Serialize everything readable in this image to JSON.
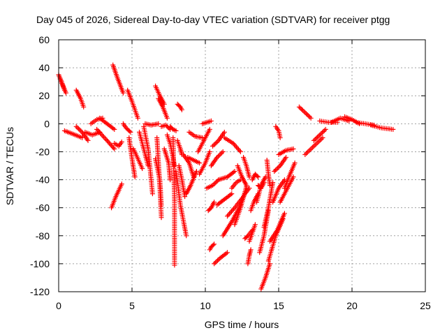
{
  "chart_data": {
    "type": "scatter",
    "title": "Day 045 of 2026, Sidereal Day-to-day VTEC variation (SDTVAR) for receiver ptgg",
    "xlabel": "GPS time / hours",
    "ylabel": "SDTVAR / TECUs",
    "xlim": [
      0,
      25
    ],
    "ylim": [
      -120,
      60
    ],
    "xticks": [
      0,
      5,
      10,
      15,
      20,
      25
    ],
    "yticks": [
      -120,
      -100,
      -80,
      -60,
      -40,
      -20,
      0,
      20,
      40,
      60
    ],
    "xtick_labels": [
      "0",
      "5",
      "10",
      "15",
      "20",
      "25"
    ],
    "ytick_labels": [
      "-120",
      "-100",
      "-80",
      "-60",
      "-40",
      "-20",
      "0",
      "20",
      "40",
      "60"
    ],
    "grid": true,
    "marker": "+",
    "color": "#ff0000",
    "arcs": [
      [
        [
          0.0,
          35
        ],
        [
          0.2,
          30
        ],
        [
          0.4,
          24
        ]
      ],
      [
        [
          0.1,
          32
        ],
        [
          0.3,
          27
        ],
        [
          0.5,
          22
        ]
      ],
      [
        [
          0.4,
          -5
        ],
        [
          0.9,
          -7
        ],
        [
          1.6,
          -10
        ]
      ],
      [
        [
          1.2,
          24
        ],
        [
          1.5,
          18
        ],
        [
          1.7,
          12
        ]
      ],
      [
        [
          1.2,
          -2
        ],
        [
          1.6,
          -6
        ],
        [
          2.0,
          -12
        ]
      ],
      [
        [
          1.8,
          -6
        ],
        [
          2.3,
          -8
        ],
        [
          2.8,
          -6
        ]
      ],
      [
        [
          2.2,
          0
        ],
        [
          2.6,
          3
        ],
        [
          3.0,
          4
        ]
      ],
      [
        [
          2.8,
          4
        ],
        [
          3.3,
          0
        ],
        [
          3.8,
          -4
        ]
      ],
      [
        [
          2.6,
          -4
        ],
        [
          3.3,
          -12
        ],
        [
          3.8,
          -18
        ]
      ],
      [
        [
          3.7,
          42
        ],
        [
          4.0,
          33
        ],
        [
          4.4,
          22
        ]
      ],
      [
        [
          3.6,
          -60
        ],
        [
          3.9,
          -52
        ],
        [
          4.3,
          -43
        ]
      ],
      [
        [
          3.8,
          -14
        ],
        [
          4.1,
          -16
        ],
        [
          4.3,
          -13
        ]
      ],
      [
        [
          4.4,
          0
        ],
        [
          4.6,
          -3
        ],
        [
          4.9,
          -6
        ]
      ],
      [
        [
          4.7,
          24
        ],
        [
          5.0,
          16
        ],
        [
          5.4,
          4
        ]
      ],
      [
        [
          4.8,
          -10
        ],
        [
          5.0,
          -25
        ],
        [
          5.2,
          -38
        ]
      ],
      [
        [
          5.1,
          -18
        ],
        [
          5.4,
          -25
        ],
        [
          5.7,
          -32
        ]
      ],
      [
        [
          5.5,
          -6
        ],
        [
          5.8,
          -18
        ],
        [
          6.1,
          -30
        ]
      ],
      [
        [
          5.8,
          -2
        ],
        [
          6.1,
          -18
        ],
        [
          6.4,
          -50
        ]
      ],
      [
        [
          5.9,
          0
        ],
        [
          6.3,
          -1
        ],
        [
          6.8,
          0
        ]
      ],
      [
        [
          6.6,
          27
        ],
        [
          6.9,
          20
        ],
        [
          7.2,
          14
        ]
      ],
      [
        [
          6.8,
          18
        ],
        [
          7.1,
          12
        ],
        [
          7.4,
          4
        ]
      ],
      [
        [
          6.6,
          -25
        ],
        [
          6.9,
          -40
        ],
        [
          7.0,
          -58
        ]
      ],
      [
        [
          6.7,
          -10
        ],
        [
          6.9,
          -45
        ],
        [
          7.0,
          -67
        ]
      ],
      [
        [
          7.0,
          -2
        ],
        [
          7.3,
          -1
        ],
        [
          7.6,
          -4
        ]
      ],
      [
        [
          7.2,
          -18
        ],
        [
          7.5,
          -28
        ],
        [
          7.6,
          -40
        ]
      ],
      [
        [
          7.4,
          -8
        ],
        [
          7.6,
          -14
        ],
        [
          7.9,
          -30
        ]
      ],
      [
        [
          7.6,
          -2
        ],
        [
          7.8,
          -4
        ],
        [
          8.0,
          -5
        ]
      ],
      [
        [
          7.8,
          -10
        ],
        [
          7.9,
          -55
        ],
        [
          7.9,
          -101
        ]
      ],
      [
        [
          8.1,
          14
        ],
        [
          8.3,
          12
        ],
        [
          8.4,
          10
        ]
      ],
      [
        [
          8.0,
          -34
        ],
        [
          8.3,
          -58
        ],
        [
          8.7,
          -80
        ]
      ],
      [
        [
          8.1,
          -12
        ],
        [
          8.3,
          -18
        ],
        [
          8.4,
          -22
        ]
      ],
      [
        [
          8.2,
          -30
        ],
        [
          8.4,
          -40
        ],
        [
          8.6,
          -52
        ]
      ],
      [
        [
          8.5,
          -22
        ],
        [
          8.9,
          -28
        ],
        [
          9.2,
          -38
        ]
      ],
      [
        [
          8.7,
          -50
        ],
        [
          9.0,
          -44
        ],
        [
          9.4,
          -34
        ]
      ],
      [
        [
          8.8,
          -24
        ],
        [
          9.2,
          -26
        ],
        [
          9.6,
          -28
        ]
      ],
      [
        [
          8.9,
          -6
        ],
        [
          9.3,
          -9
        ],
        [
          9.8,
          -10
        ]
      ],
      [
        [
          9.5,
          -20
        ],
        [
          9.9,
          -12
        ],
        [
          10.3,
          -4
        ]
      ],
      [
        [
          9.6,
          -36
        ],
        [
          10.0,
          -28
        ],
        [
          10.3,
          -20
        ]
      ],
      [
        [
          9.8,
          0
        ],
        [
          10.1,
          1
        ],
        [
          10.4,
          2
        ]
      ],
      [
        [
          10.1,
          -46
        ],
        [
          10.5,
          -44
        ],
        [
          10.9,
          -40
        ]
      ],
      [
        [
          10.2,
          -62
        ],
        [
          10.4,
          -60
        ],
        [
          10.6,
          -56
        ]
      ],
      [
        [
          10.3,
          -90
        ],
        [
          10.4,
          -88
        ],
        [
          10.6,
          -86
        ]
      ],
      [
        [
          10.4,
          -30
        ],
        [
          10.8,
          -24
        ],
        [
          11.2,
          -20
        ]
      ],
      [
        [
          10.5,
          -16
        ],
        [
          10.9,
          -12
        ],
        [
          11.3,
          -6
        ]
      ],
      [
        [
          10.6,
          -100
        ],
        [
          11.0,
          -96
        ],
        [
          11.5,
          -92
        ]
      ],
      [
        [
          10.8,
          -58
        ],
        [
          11.3,
          -54
        ],
        [
          11.8,
          -50
        ]
      ],
      [
        [
          10.9,
          -40
        ],
        [
          11.5,
          -38
        ],
        [
          12.0,
          -34
        ]
      ],
      [
        [
          11.2,
          -80
        ],
        [
          11.8,
          -70
        ],
        [
          12.4,
          -58
        ]
      ],
      [
        [
          11.3,
          -10
        ],
        [
          11.9,
          -14
        ],
        [
          12.4,
          -20
        ]
      ],
      [
        [
          11.5,
          -66
        ],
        [
          12.0,
          -60
        ],
        [
          12.6,
          -52
        ]
      ],
      [
        [
          11.8,
          -46
        ],
        [
          12.1,
          -42
        ],
        [
          12.4,
          -40
        ]
      ],
      [
        [
          12.0,
          -72
        ],
        [
          12.4,
          -60
        ],
        [
          12.8,
          -45
        ]
      ],
      [
        [
          12.2,
          -30
        ],
        [
          12.5,
          -38
        ],
        [
          12.8,
          -44
        ]
      ],
      [
        [
          12.4,
          -56
        ],
        [
          12.7,
          -50
        ],
        [
          13.0,
          -46
        ]
      ],
      [
        [
          12.6,
          -24
        ],
        [
          12.8,
          -30
        ],
        [
          13.0,
          -38
        ]
      ],
      [
        [
          12.7,
          -82
        ],
        [
          12.9,
          -80
        ],
        [
          13.2,
          -76
        ]
      ],
      [
        [
          12.9,
          -100
        ],
        [
          13.0,
          -94
        ],
        [
          13.1,
          -90
        ]
      ],
      [
        [
          13.0,
          -84
        ],
        [
          13.2,
          -78
        ],
        [
          13.4,
          -72
        ]
      ],
      [
        [
          13.1,
          -62
        ],
        [
          13.3,
          -56
        ],
        [
          13.6,
          -50
        ]
      ],
      [
        [
          13.2,
          -40
        ],
        [
          13.4,
          -36
        ],
        [
          13.6,
          -38
        ]
      ],
      [
        [
          13.5,
          -56
        ],
        [
          13.8,
          -44
        ],
        [
          14.1,
          -38
        ]
      ],
      [
        [
          13.6,
          -44
        ],
        [
          13.8,
          -46
        ],
        [
          14.0,
          -42
        ]
      ],
      [
        [
          13.7,
          -92
        ],
        [
          14.0,
          -80
        ],
        [
          14.3,
          -62
        ]
      ],
      [
        [
          13.8,
          -118
        ],
        [
          14.1,
          -110
        ],
        [
          14.4,
          -100
        ]
      ],
      [
        [
          14.0,
          -74
        ],
        [
          14.3,
          -60
        ],
        [
          14.6,
          -42
        ]
      ],
      [
        [
          14.2,
          -26
        ],
        [
          14.3,
          -36
        ],
        [
          14.4,
          -44
        ]
      ],
      [
        [
          14.3,
          -98
        ],
        [
          14.8,
          -80
        ],
        [
          15.3,
          -68
        ]
      ],
      [
        [
          14.4,
          -84
        ],
        [
          14.9,
          -76
        ],
        [
          15.4,
          -64
        ]
      ],
      [
        [
          14.6,
          -56
        ],
        [
          15.0,
          -46
        ],
        [
          15.4,
          -40
        ]
      ],
      [
        [
          14.7,
          -34
        ],
        [
          15.1,
          -30
        ],
        [
          15.5,
          -24
        ]
      ],
      [
        [
          14.8,
          -2
        ],
        [
          15.0,
          -5
        ],
        [
          15.1,
          -10
        ]
      ],
      [
        [
          15.0,
          -22
        ],
        [
          15.5,
          -19
        ],
        [
          16.0,
          -18
        ]
      ],
      [
        [
          15.1,
          -56
        ],
        [
          15.6,
          -46
        ],
        [
          16.0,
          -38
        ]
      ],
      [
        [
          15.4,
          -46
        ],
        [
          15.7,
          -38
        ],
        [
          16.1,
          -28
        ]
      ],
      [
        [
          16.4,
          12
        ],
        [
          16.8,
          8
        ],
        [
          17.2,
          4
        ]
      ],
      [
        [
          16.8,
          -22
        ],
        [
          17.4,
          -16
        ],
        [
          18.0,
          -10
        ]
      ],
      [
        [
          17.4,
          -12
        ],
        [
          17.8,
          -8
        ],
        [
          18.2,
          -4
        ]
      ],
      [
        [
          17.8,
          2
        ],
        [
          18.4,
          1
        ],
        [
          19.0,
          1
        ]
      ],
      [
        [
          18.6,
          1
        ],
        [
          19.2,
          4
        ],
        [
          19.8,
          2
        ]
      ],
      [
        [
          19.5,
          5
        ],
        [
          20.0,
          3
        ],
        [
          20.5,
          0
        ]
      ],
      [
        [
          20.3,
          1
        ],
        [
          20.9,
          0
        ],
        [
          21.5,
          -1
        ]
      ],
      [
        [
          21.3,
          -1
        ],
        [
          22.0,
          -3
        ],
        [
          22.8,
          -4
        ]
      ]
    ]
  }
}
